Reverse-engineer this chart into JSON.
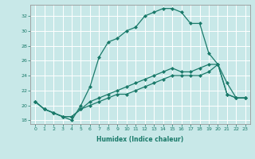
{
  "xlabel": "Humidex (Indice chaleur)",
  "xlim": [
    -0.5,
    23.5
  ],
  "ylim": [
    17.5,
    33.5
  ],
  "yticks": [
    18,
    20,
    22,
    24,
    26,
    28,
    30,
    32
  ],
  "xticks": [
    0,
    1,
    2,
    3,
    4,
    5,
    6,
    7,
    8,
    9,
    10,
    11,
    12,
    13,
    14,
    15,
    16,
    17,
    18,
    19,
    20,
    21,
    22,
    23
  ],
  "background_color": "#c8e8e8",
  "grid_color": "#ffffff",
  "line_color": "#1a7a6a",
  "lines": [
    {
      "x": [
        0,
        1,
        2,
        3,
        4,
        5,
        6,
        7,
        8,
        9,
        10,
        11,
        12,
        13,
        14,
        15,
        16,
        17,
        18,
        19,
        20,
        21,
        22,
        23
      ],
      "y": [
        20.5,
        19.5,
        19.0,
        18.5,
        18.0,
        20.0,
        22.5,
        26.5,
        28.5,
        29.0,
        30.0,
        30.5,
        32.0,
        32.5,
        33.0,
        33.0,
        32.5,
        31.0,
        31.0,
        27.0,
        25.5,
        23.0,
        21.0,
        21.0
      ]
    },
    {
      "x": [
        0,
        1,
        2,
        3,
        4,
        5,
        6,
        7,
        8,
        9,
        10,
        11,
        12,
        13,
        14,
        15,
        16,
        17,
        18,
        19,
        20,
        21,
        22,
        23
      ],
      "y": [
        20.5,
        19.5,
        19.0,
        18.5,
        18.5,
        19.5,
        20.5,
        21.0,
        21.5,
        22.0,
        22.5,
        23.0,
        23.5,
        24.0,
        24.5,
        25.0,
        24.5,
        24.5,
        25.0,
        25.5,
        25.5,
        21.5,
        21.0,
        21.0
      ]
    },
    {
      "x": [
        0,
        1,
        2,
        3,
        4,
        5,
        6,
        7,
        8,
        9,
        10,
        11,
        12,
        13,
        14,
        15,
        16,
        17,
        18,
        19,
        20,
        21,
        22,
        23
      ],
      "y": [
        20.5,
        19.5,
        19.0,
        18.5,
        18.5,
        19.5,
        20.0,
        20.5,
        21.0,
        21.5,
        21.5,
        22.0,
        22.5,
        23.0,
        23.5,
        24.0,
        24.0,
        24.0,
        24.0,
        24.5,
        25.5,
        21.5,
        21.0,
        21.0
      ]
    }
  ]
}
